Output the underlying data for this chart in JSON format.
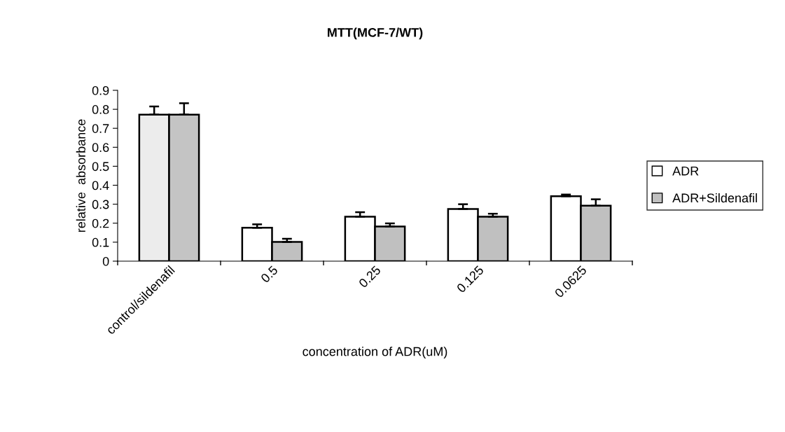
{
  "chart_data": {
    "type": "bar",
    "title": "MTT(MCF-7/WT)",
    "xlabel": "concentration of ADR(uM)",
    "ylabel": "relative  absorbance",
    "categories": [
      "control/sildenafil",
      "0.5",
      "0.25",
      "0.125",
      "0.0625"
    ],
    "series": [
      {
        "name": "ADR",
        "color": "#ffffff",
        "colors": [
          "#ececec",
          "#ffffff",
          "#ffffff",
          "#ffffff",
          "#ffffff"
        ],
        "values": [
          0.772,
          0.176,
          0.234,
          0.275,
          0.342
        ],
        "errors": [
          0.043,
          0.018,
          0.024,
          0.025,
          0.009
        ]
      },
      {
        "name": "ADR+Sildenafil",
        "color": "#c0c0c0",
        "colors": [
          "#c4c4c4",
          "#c0c0c0",
          "#c0c0c0",
          "#c0c0c0",
          "#c0c0c0"
        ],
        "values": [
          0.772,
          0.101,
          0.183,
          0.234,
          0.292
        ],
        "errors": [
          0.06,
          0.017,
          0.016,
          0.016,
          0.034
        ]
      }
    ],
    "ylim": [
      0,
      0.9
    ],
    "yticks": [
      0,
      0.1,
      0.2,
      0.3,
      0.4,
      0.5,
      0.6,
      0.7,
      0.8,
      0.9
    ],
    "grid": false,
    "legend": "right"
  }
}
